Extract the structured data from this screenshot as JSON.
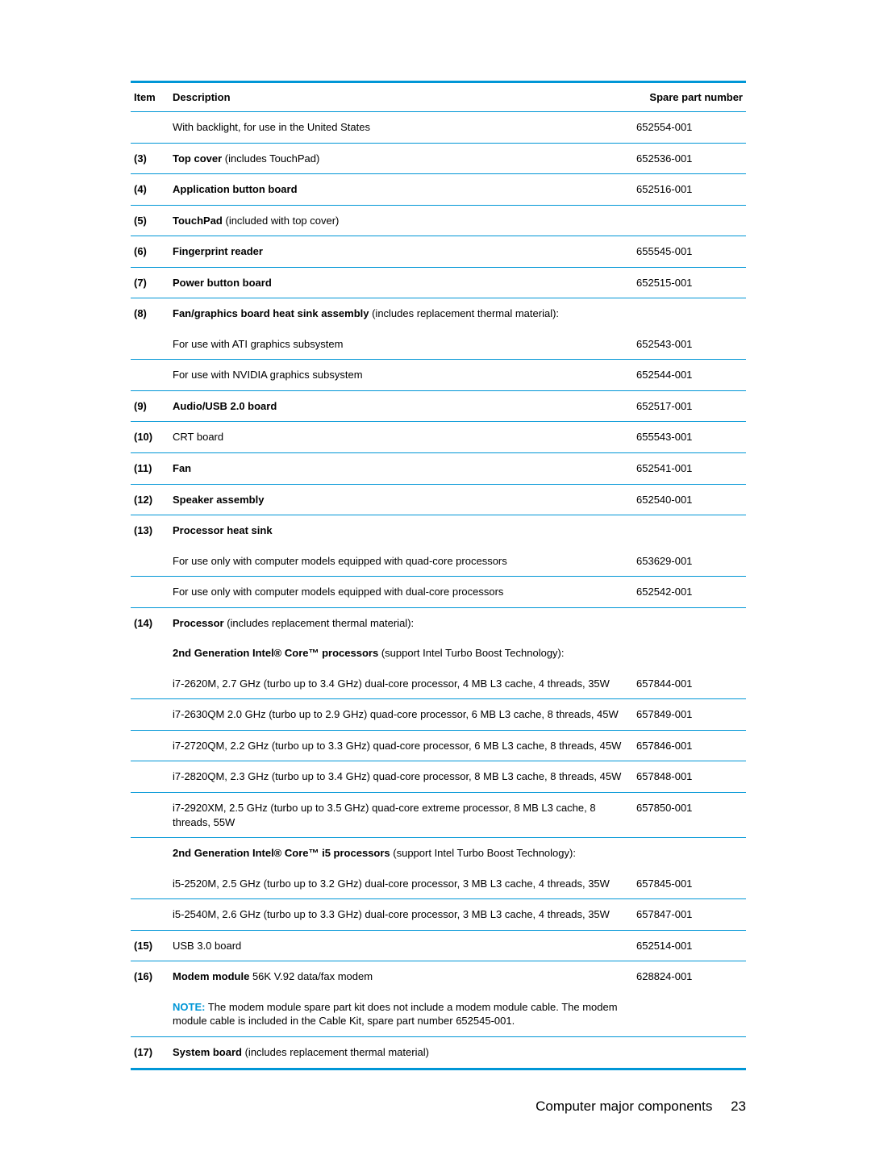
{
  "header": {
    "item": "Item",
    "description": "Description",
    "spare": "Spare part number"
  },
  "rows": [
    {
      "item": "",
      "desc_plain": "With backlight, for use in the United States",
      "part": "652554-001"
    },
    {
      "item": "(3)",
      "desc_bold": "Top cover",
      "desc_rest": " (includes TouchPad)",
      "part": "652536-001"
    },
    {
      "item": "(4)",
      "desc_bold": "Application button board",
      "part": "652516-001"
    },
    {
      "item": "(5)",
      "desc_bold": "TouchPad",
      "desc_rest": " (included with top cover)",
      "part": ""
    },
    {
      "item": "(6)",
      "desc_bold": "Fingerprint reader",
      "part": "655545-001"
    },
    {
      "item": "(7)",
      "desc_bold": "Power button board",
      "part": "652515-001"
    },
    {
      "item": "(8)",
      "desc_bold": "Fan/graphics board heat sink assembly",
      "desc_rest": " (includes replacement thermal material):",
      "part": "",
      "noborder": true
    },
    {
      "item": "",
      "desc_plain": "For use with ATI graphics subsystem",
      "part": "652543-001"
    },
    {
      "item": "",
      "desc_plain": "For use with NVIDIA graphics subsystem",
      "part": "652544-001"
    },
    {
      "item": "(9)",
      "desc_bold": "Audio/USB 2.0 board",
      "part": "652517-001"
    },
    {
      "item": "(10)",
      "desc_plain": "CRT board",
      "part": "655543-001"
    },
    {
      "item": "(11)",
      "desc_bold": "Fan",
      "part": "652541-001"
    },
    {
      "item": "(12)",
      "desc_bold": "Speaker assembly",
      "part": "652540-001"
    },
    {
      "item": "(13)",
      "desc_bold": "Processor heat sink",
      "part": "",
      "noborder": true
    },
    {
      "item": "",
      "desc_plain": "For use only with computer models equipped with quad-core processors",
      "part": "653629-001"
    },
    {
      "item": "",
      "desc_plain": "For use only with computer models equipped with dual-core processors",
      "part": "652542-001"
    },
    {
      "item": "(14)",
      "desc_bold": "Processor",
      "desc_rest": " (includes replacement thermal material):",
      "part": "",
      "noborder": true
    },
    {
      "item": "",
      "desc_bold": "2nd Generation Intel® Core™ processors",
      "desc_rest": " (support Intel Turbo Boost Technology):",
      "part": "",
      "noborder": true
    },
    {
      "item": "",
      "desc_plain": "i7-2620M, 2.7 GHz (turbo up to 3.4 GHz) dual-core processor, 4 MB L3 cache, 4 threads, 35W",
      "part": "657844-001"
    },
    {
      "item": "",
      "desc_plain": "i7-2630QM 2.0 GHz (turbo up to 2.9 GHz) quad-core processor, 6 MB L3 cache, 8 threads, 45W",
      "part": "657849-001"
    },
    {
      "item": "",
      "desc_plain": "i7-2720QM, 2.2 GHz (turbo up to 3.3 GHz) quad-core processor, 6 MB L3 cache, 8 threads, 45W",
      "part": "657846-001"
    },
    {
      "item": "",
      "desc_plain": "i7-2820QM, 2.3 GHz (turbo up to 3.4 GHz) quad-core processor, 8 MB L3 cache, 8 threads, 45W",
      "part": "657848-001"
    },
    {
      "item": "",
      "desc_plain": "i7-2920XM, 2.5 GHz (turbo up to 3.5 GHz) quad-core extreme processor, 8 MB L3 cache, 8 threads, 55W",
      "part": "657850-001"
    },
    {
      "item": "",
      "desc_bold": "2nd Generation Intel® Core™ i5 processors",
      "desc_rest": " (support Intel Turbo Boost Technology):",
      "part": "",
      "noborder": true
    },
    {
      "item": "",
      "desc_plain": "i5-2520M, 2.5 GHz (turbo up to 3.2 GHz) dual-core processor, 3 MB L3 cache, 4 threads, 35W",
      "part": "657845-001"
    },
    {
      "item": "",
      "desc_plain": "i5-2540M, 2.6 GHz (turbo up to 3.3 GHz) dual-core processor, 3 MB L3 cache, 4 threads, 35W",
      "part": "657847-001"
    },
    {
      "item": "(15)",
      "desc_plain": "USB 3.0 board",
      "part": "652514-001"
    },
    {
      "item": "(16)",
      "desc_bold": "Modem module",
      "desc_rest": " 56K V.92 data/fax modem",
      "part": "628824-001",
      "noborder": true
    },
    {
      "item": "",
      "note": true,
      "note_label": "NOTE:",
      "desc_plain": "The modem module spare part kit does not include a modem module cable. The modem module cable is included in the Cable Kit, spare part number 652545-001.",
      "part": ""
    },
    {
      "item": "(17)",
      "desc_bold": "System board",
      "desc_rest": " (includes replacement thermal material)",
      "part": "",
      "last": true
    }
  ],
  "footer": {
    "title": "Computer major components",
    "page": "23"
  }
}
